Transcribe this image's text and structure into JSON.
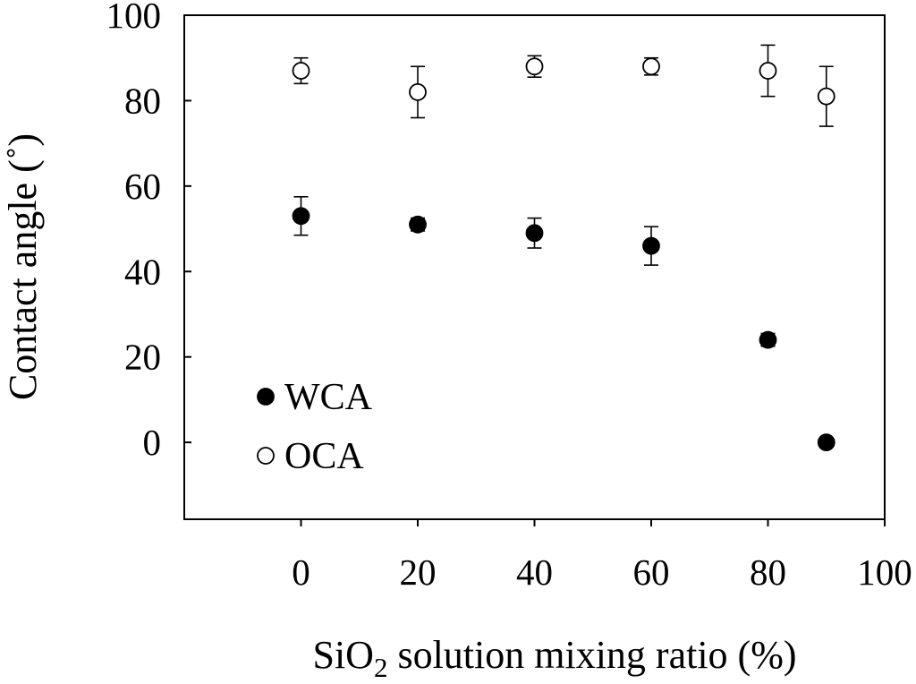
{
  "chart_data": {
    "type": "scatter",
    "xlabel": {
      "prefix": "SiO",
      "subscript": "2",
      "suffix": " solution mixing ratio (%)"
    },
    "ylabel": "Contact angle (˚)",
    "xlim": [
      -20,
      100
    ],
    "ylim": [
      -18,
      100
    ],
    "xticks": [
      0,
      20,
      40,
      60,
      80,
      100
    ],
    "yticks": [
      0,
      20,
      40,
      60,
      80,
      100
    ],
    "grid": false,
    "legend_position": "bottom-left",
    "series": [
      {
        "name": "WCA",
        "marker": "filled-circle",
        "color": "#000000",
        "x": [
          0,
          20,
          40,
          60,
          80,
          90
        ],
        "y": [
          53,
          51,
          49,
          46,
          24,
          0
        ],
        "error": [
          4.5,
          1.5,
          3.5,
          4.5,
          1.5,
          0
        ]
      },
      {
        "name": "OCA",
        "marker": "open-circle",
        "color": "#000000",
        "x": [
          0,
          20,
          40,
          60,
          80,
          90
        ],
        "y": [
          87,
          82,
          88,
          88,
          87,
          81
        ],
        "error": [
          3,
          6,
          2.5,
          2,
          6,
          7
        ]
      }
    ]
  }
}
